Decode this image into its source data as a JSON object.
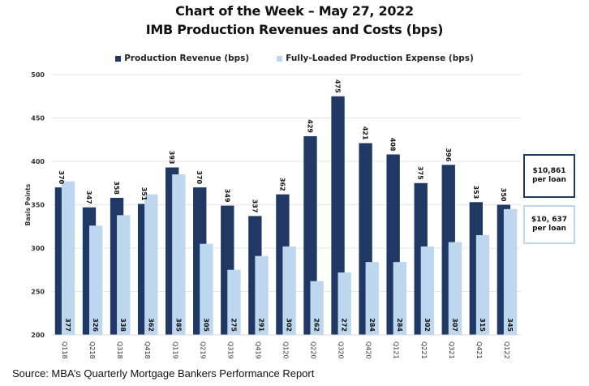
{
  "chart_data": {
    "type": "bar",
    "title": "Chart of the Week – May 27, 2022",
    "subtitle": "IMB Production Revenues and Costs (bps)",
    "xlabel": "",
    "ylabel": "Basis Points",
    "ylim": [
      200,
      500
    ],
    "yticks": [
      200,
      250,
      300,
      350,
      400,
      450,
      500
    ],
    "grid": true,
    "legend_position": "top-center",
    "categories": [
      "Q118",
      "Q218",
      "Q318",
      "Q418",
      "Q119",
      "Q219",
      "Q319",
      "Q419",
      "Q120",
      "Q220",
      "Q320",
      "Q420",
      "Q121",
      "Q221",
      "Q321",
      "Q421",
      "Q122"
    ],
    "series": [
      {
        "name": "Production Revenue (bps)",
        "color": "#1f3864",
        "values": [
          370,
          347,
          358,
          351,
          393,
          370,
          349,
          337,
          362,
          429,
          475,
          421,
          408,
          375,
          396,
          353,
          350
        ]
      },
      {
        "name": "Fully-Loaded Production Expense (bps)",
        "color": "#bdd7ee",
        "values": [
          377,
          326,
          338,
          362,
          385,
          305,
          275,
          291,
          302,
          262,
          272,
          284,
          284,
          302,
          307,
          315,
          345
        ]
      }
    ],
    "annotations": [
      {
        "text": "$10,861 per loan",
        "series": "Production Revenue (bps)"
      },
      {
        "text": "$10, 637 per loan",
        "series": "Fully-Loaded Production Expense (bps)"
      }
    ],
    "source": "Source:  MBA’s Quarterly Mortgage Bankers Performance Report"
  }
}
